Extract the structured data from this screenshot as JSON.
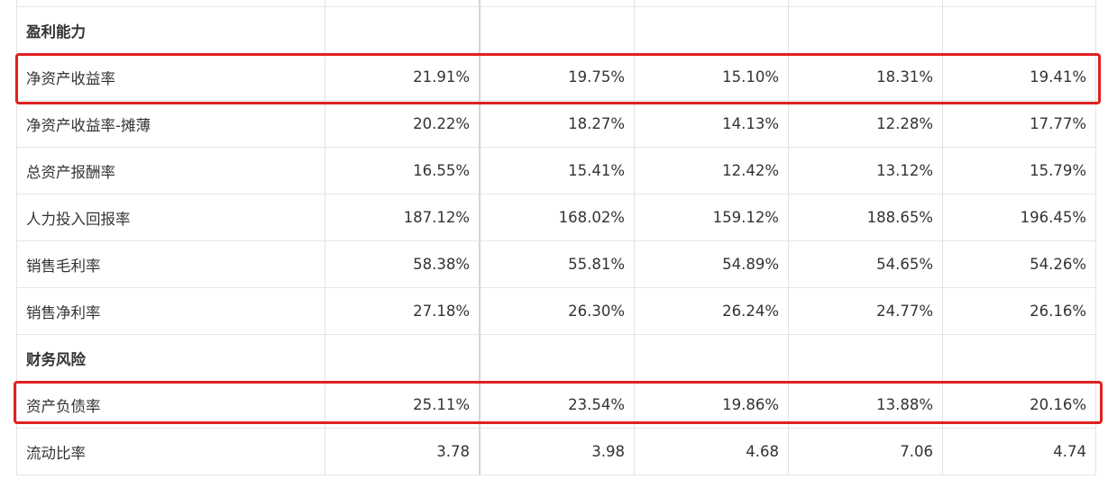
{
  "accent_red": "#e02020",
  "rows": [
    {
      "type": "section",
      "label": "盈利能力",
      "values": [
        "",
        "",
        "",
        "",
        ""
      ]
    },
    {
      "type": "data",
      "label": "净资产收益率",
      "values": [
        "21.91%",
        "19.75%",
        "15.10%",
        "18.31%",
        "19.41%"
      ],
      "highlighted": true
    },
    {
      "type": "data",
      "label": "净资产收益率-摊薄",
      "values": [
        "20.22%",
        "18.27%",
        "14.13%",
        "12.28%",
        "17.77%"
      ]
    },
    {
      "type": "data",
      "label": "总资产报酬率",
      "values": [
        "16.55%",
        "15.41%",
        "12.42%",
        "13.12%",
        "15.79%"
      ]
    },
    {
      "type": "data",
      "label": "人力投入回报率",
      "values": [
        "187.12%",
        "168.02%",
        "159.12%",
        "188.65%",
        "196.45%"
      ]
    },
    {
      "type": "data",
      "label": "销售毛利率",
      "values": [
        "58.38%",
        "55.81%",
        "54.89%",
        "54.65%",
        "54.26%"
      ]
    },
    {
      "type": "data",
      "label": "销售净利率",
      "values": [
        "27.18%",
        "26.30%",
        "26.24%",
        "24.77%",
        "26.16%"
      ]
    },
    {
      "type": "section",
      "label": "财务风险",
      "values": [
        "",
        "",
        "",
        "",
        ""
      ]
    },
    {
      "type": "data",
      "label": "资产负债率",
      "values": [
        "25.11%",
        "23.54%",
        "19.86%",
        "13.88%",
        "20.16%"
      ],
      "highlighted": true
    },
    {
      "type": "data",
      "label": "流动比率",
      "values": [
        "3.78",
        "3.98",
        "4.68",
        "7.06",
        "4.74"
      ]
    }
  ]
}
